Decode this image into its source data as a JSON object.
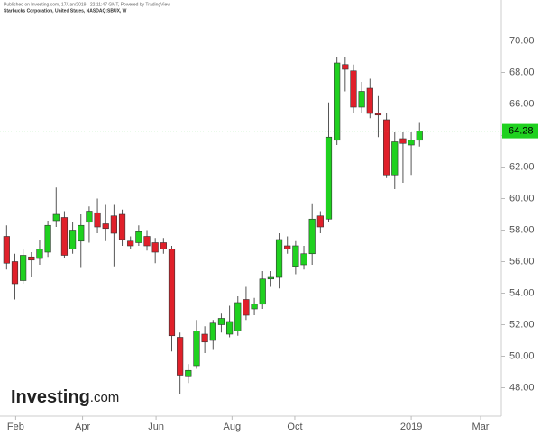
{
  "chart_data": {
    "type": "candlestick",
    "published": "Published on Investing.com, 17/Jan/2019 - 22:11:47 GMT, Powered by TradingView",
    "subtitle": "Starbucks Corporation, United States, NASDAQ:SBUX, W",
    "logo": "Investing",
    "logo_suffix": ".com",
    "up_color": "#1fd11f",
    "down_color": "#e0202a",
    "open": [
      57.6,
      56.0,
      54.8,
      56.3,
      56.2,
      56.6,
      58.6,
      58.8,
      56.8,
      57.3,
      58.5,
      59.1,
      58.4,
      58.9,
      59.0,
      57.3,
      57.2,
      57.6,
      57.2,
      57.2,
      56.8,
      51.2,
      48.7,
      49.4,
      51.4,
      51.0,
      52.0,
      51.4,
      51.6,
      53.6,
      53.0,
      53.3,
      54.9,
      55.0,
      57.0,
      55.7,
      55.8,
      56.5,
      58.9,
      58.7,
      63.7,
      68.5,
      68.1,
      65.8,
      67.0,
      65.4,
      65.0,
      61.5,
      63.8,
      63.4,
      63.7
    ],
    "high": [
      58.3,
      56.5,
      56.8,
      56.6,
      57.4,
      58.6,
      60.7,
      59.2,
      58.5,
      59.0,
      59.5,
      60.0,
      59.6,
      59.6,
      59.3,
      57.6,
      58.3,
      58.0,
      57.5,
      57.5,
      57.0,
      51.5,
      49.5,
      52.3,
      51.9,
      52.3,
      52.7,
      53.2,
      53.8,
      54.4,
      53.7,
      55.4,
      55.4,
      57.8,
      57.6,
      57.3,
      57.0,
      59.7,
      59.2,
      66.1,
      69.0,
      69.0,
      68.5,
      67.4,
      67.6,
      66.5,
      65.4,
      64.2,
      64.2,
      64.2,
      64.8
    ],
    "low": [
      55.5,
      53.6,
      54.6,
      55.0,
      55.8,
      56.3,
      58.2,
      56.2,
      56.5,
      55.6,
      57.2,
      57.8,
      57.3,
      55.7,
      57.0,
      56.8,
      57.0,
      56.7,
      55.9,
      56.5,
      50.3,
      47.6,
      48.3,
      49.2,
      50.2,
      50.4,
      51.5,
      51.2,
      51.3,
      52.3,
      52.6,
      53.0,
      54.4,
      54.3,
      56.5,
      55.2,
      55.5,
      55.8,
      57.8,
      58.5,
      63.4,
      66.8,
      65.4,
      65.4,
      65.1,
      63.9,
      61.3,
      60.6,
      61.0,
      61.5,
      63.3
    ],
    "close": [
      55.9,
      54.6,
      56.4,
      56.1,
      56.8,
      58.3,
      59.0,
      56.4,
      58.0,
      58.3,
      59.2,
      58.2,
      58.1,
      57.8,
      57.4,
      57.0,
      57.9,
      57.0,
      56.6,
      56.8,
      51.3,
      48.8,
      49.1,
      51.6,
      50.9,
      52.1,
      52.4,
      52.2,
      53.4,
      52.6,
      53.3,
      54.9,
      55.0,
      57.4,
      56.8,
      57.0,
      56.5,
      58.7,
      58.2,
      63.9,
      68.6,
      68.2,
      65.8,
      66.8,
      65.4,
      65.3,
      61.5,
      63.6,
      63.5,
      63.7,
      64.28
    ],
    "last_price": 64.28,
    "ylim": [
      46.2,
      72.6
    ],
    "yticks": [
      {
        "value": 48,
        "label": "48.00"
      },
      {
        "value": 50,
        "label": "50.00"
      },
      {
        "value": 52,
        "label": "52.00"
      },
      {
        "value": 54,
        "label": "54.00"
      },
      {
        "value": 56,
        "label": "56.00"
      },
      {
        "value": 58,
        "label": "58.00"
      },
      {
        "value": 60,
        "label": "60.00"
      },
      {
        "value": 62,
        "label": "62.00"
      },
      {
        "value": 64,
        "label": "64.00"
      },
      {
        "value": 66,
        "label": "66.00"
      },
      {
        "value": 68,
        "label": "68.00"
      },
      {
        "value": 70,
        "label": "70.00"
      }
    ],
    "xlim": [
      -0.8,
      59.8
    ],
    "xticks": [
      {
        "value": 1.1,
        "label": "Feb"
      },
      {
        "value": 9.2,
        "label": "Apr"
      },
      {
        "value": 18.1,
        "label": "Jun"
      },
      {
        "value": 27.3,
        "label": "Aug"
      },
      {
        "value": 34.9,
        "label": "Oct"
      },
      {
        "value": 49.0,
        "label": "2019"
      },
      {
        "value": 57.4,
        "label": "Mar"
      }
    ]
  }
}
